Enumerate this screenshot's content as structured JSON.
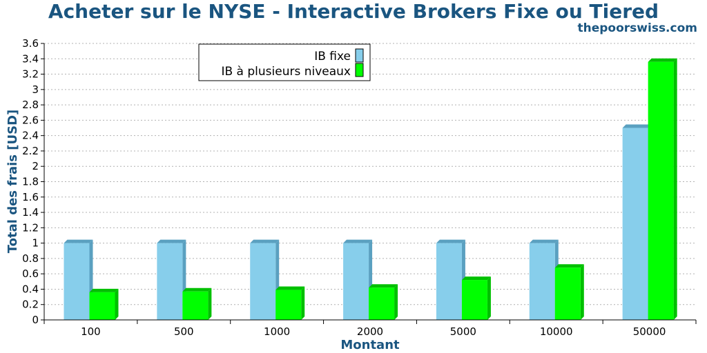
{
  "chart_data": {
    "type": "bar",
    "title": "Acheter sur le NYSE - Interactive Brokers Fixe ou Tiered",
    "subtitle": "thepoorswiss.com",
    "xlabel": "Montant",
    "ylabel": "Total des frais [USD]",
    "categories": [
      "100",
      "500",
      "1000",
      "2000",
      "5000",
      "10000",
      "50000"
    ],
    "ylim": [
      0,
      3.6
    ],
    "ytick_step": 0.2,
    "grid": true,
    "legend_position": "top-left",
    "series": [
      {
        "name": "IB fixe",
        "color": "#87ceeb",
        "side_color": "#5aa0c0",
        "values": [
          1.0,
          1.0,
          1.0,
          1.0,
          1.0,
          1.0,
          2.5
        ]
      },
      {
        "name": "IB à plusieurs niveaux",
        "color": "#00ff00",
        "side_color": "#00c000",
        "values": [
          0.36,
          0.37,
          0.39,
          0.42,
          0.52,
          0.68,
          3.36
        ]
      }
    ]
  }
}
